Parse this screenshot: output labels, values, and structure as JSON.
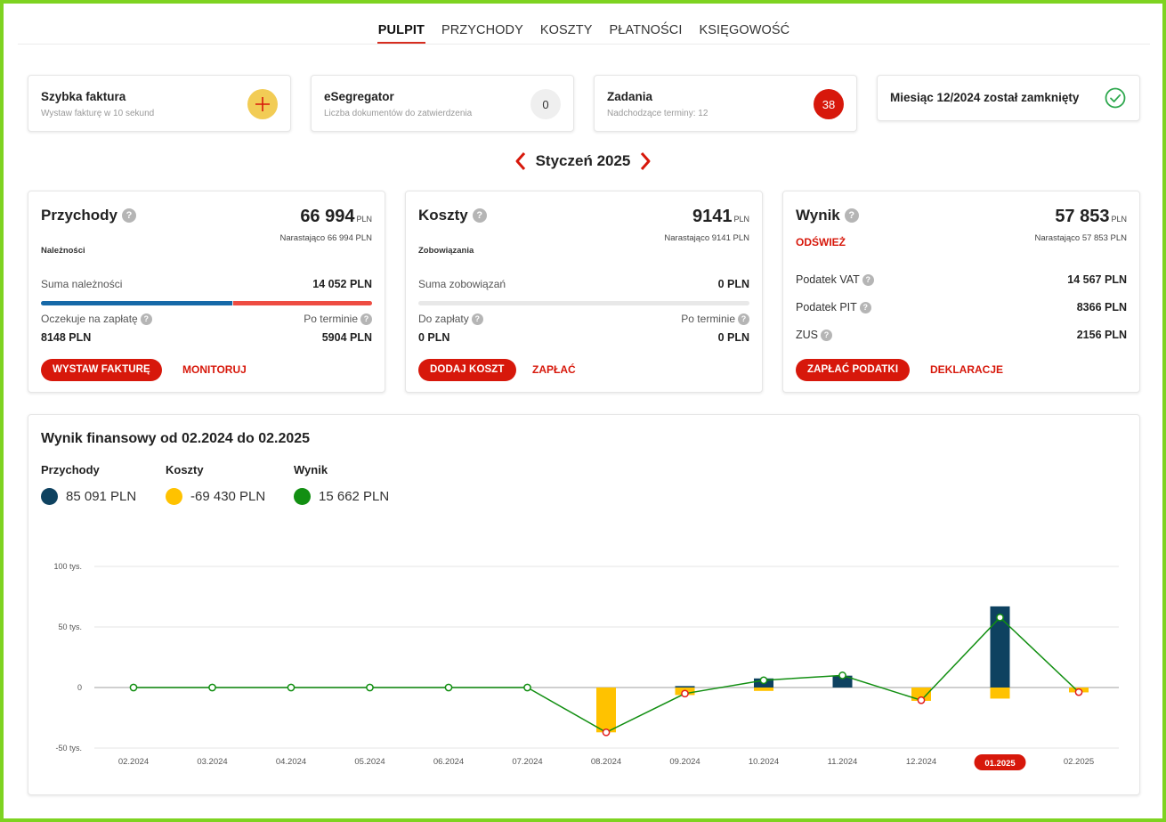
{
  "nav": {
    "tabs": [
      {
        "label": "PULPIT",
        "active": true
      },
      {
        "label": "PRZYCHODY"
      },
      {
        "label": "KOSZTY"
      },
      {
        "label": "PŁATNOŚCI"
      },
      {
        "label": "KSIĘGOWOŚĆ"
      }
    ]
  },
  "quick_cards": {
    "invoice": {
      "title": "Szybka faktura",
      "subtitle": "Wystaw fakturę w 10 sekund",
      "icon": "plus-icon"
    },
    "esegregator": {
      "title": "eSegregator",
      "subtitle": "Liczba dokumentów do zatwierdzenia",
      "count": "0"
    },
    "tasks": {
      "title": "Zadania",
      "subtitle": "Nadchodzące terminy: 12",
      "count": "38"
    },
    "closed": {
      "title": "Miesiąc 12/2024 został zamknięty",
      "icon": "check-circle-icon"
    }
  },
  "month": {
    "label": "Styczeń 2025"
  },
  "revenue": {
    "title": "Przychody",
    "amount": "66 994",
    "currency": "PLN",
    "cumulative": "Narastająco 66 994 PLN",
    "section": "Należności",
    "sum_label": "Suma należności",
    "sum_value": "14 052 PLN",
    "waiting_label": "Oczekuje na zapłatę",
    "waiting_value": "8148 PLN",
    "overdue_label": "Po terminie",
    "overdue_value": "5904 PLN",
    "button": "WYSTAW FAKTURĘ",
    "link": "MONITORUJ"
  },
  "costs": {
    "title": "Koszty",
    "amount": "9141",
    "currency": "PLN",
    "cumulative": "Narastająco 9141 PLN",
    "section": "Zobowiązania",
    "sum_label": "Suma zobowiązań",
    "sum_value": "0 PLN",
    "due_label": "Do zapłaty",
    "due_value": "0 PLN",
    "overdue_label": "Po terminie",
    "overdue_value": "0 PLN",
    "button": "DODAJ KOSZT",
    "link": "ZAPŁAĆ"
  },
  "result": {
    "title": "Wynik",
    "amount": "57 853",
    "currency": "PLN",
    "cumulative": "Narastająco 57 853 PLN",
    "refresh": "ODŚWIEŻ",
    "vat_label": "Podatek VAT",
    "vat_value": "14 567 PLN",
    "pit_label": "Podatek PIT",
    "pit_value": "8366 PLN",
    "zus_label": "ZUS",
    "zus_value": "2156 PLN",
    "button": "ZAPŁAĆ PODATKI",
    "link": "DEKLARACJE"
  },
  "colors": {
    "accent": "#d7180b",
    "revenue": "#0e4260",
    "costs": "#ffc200",
    "result": "#128f12",
    "bar_blue": "#1669a8",
    "bar_red": "#ee4c42"
  },
  "chart_section": {
    "title": "Wynik finansowy od 02.2024 do 02.2025",
    "legend": [
      {
        "label": "Przychody",
        "value": "85 091 PLN"
      },
      {
        "label": "Koszty",
        "value": "-69 430 PLN"
      },
      {
        "label": "Wynik",
        "value": "15 662 PLN"
      }
    ]
  },
  "chart_data": {
    "type": "bar",
    "title": "Wynik finansowy od 02.2024 do 02.2025",
    "categories": [
      "02.2024",
      "03.2024",
      "04.2024",
      "05.2024",
      "06.2024",
      "07.2024",
      "08.2024",
      "09.2024",
      "10.2024",
      "11.2024",
      "12.2024",
      "01.2025",
      "02.2025"
    ],
    "selected_category": "01.2025",
    "y_ticks": [
      {
        "value": 100000,
        "label": "100 tys."
      },
      {
        "value": 50000,
        "label": "50 tys."
      },
      {
        "value": 0,
        "label": "0"
      },
      {
        "value": -50000,
        "label": "-50 tys."
      }
    ],
    "ylim": [
      -50000,
      100000
    ],
    "series": [
      {
        "name": "Przychody",
        "type": "bar",
        "values": [
          0,
          0,
          0,
          0,
          0,
          0,
          0,
          1200,
          7500,
          9800,
          0,
          66994,
          0
        ]
      },
      {
        "name": "Koszty",
        "type": "bar",
        "values": [
          0,
          0,
          0,
          0,
          0,
          0,
          -37000,
          -6200,
          -2800,
          0,
          -11000,
          -9141,
          -4000
        ]
      },
      {
        "name": "Wynik",
        "type": "line",
        "values": [
          0,
          0,
          0,
          0,
          0,
          0,
          -37000,
          -5000,
          6000,
          10000,
          -10500,
          57853,
          -3800
        ]
      }
    ]
  }
}
